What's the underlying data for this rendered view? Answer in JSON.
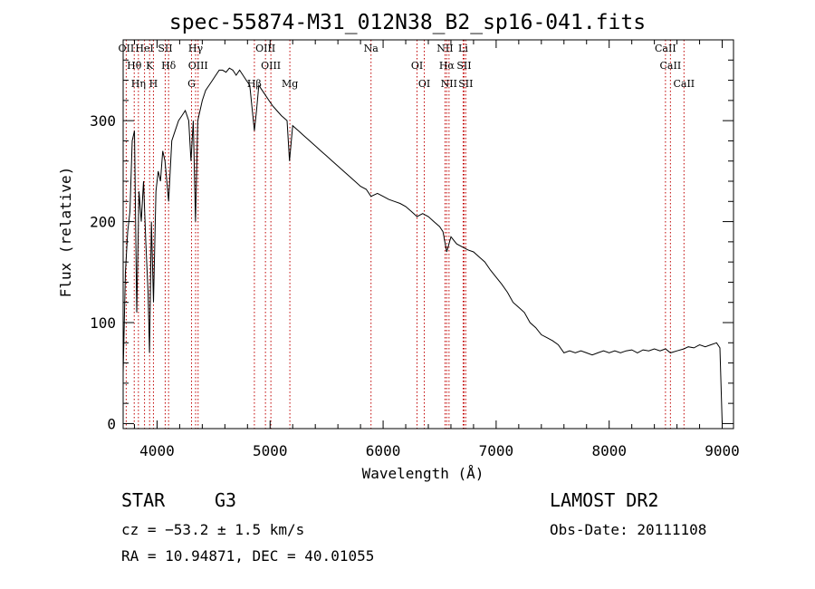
{
  "header": {
    "title": "spec-55874-M31_012N38_B2_sp16-041.fits"
  },
  "footer": {
    "object_type": "STAR",
    "subclass": "G3",
    "cz": "cz = −53.2 ± 1.5 km/s",
    "radec": "RA =  10.94871, DEC =  40.01055",
    "survey": "LAMOST DR2",
    "obs_date": "Obs-Date: 20111108"
  },
  "chart_data": {
    "type": "line",
    "title": "spec-55874-M31_012N38_B2_sp16-041.fits",
    "xlabel": "Wavelength (Å)",
    "ylabel": "Flux (relative)",
    "xlim": [
      3700,
      9100
    ],
    "ylim": [
      -5,
      380
    ],
    "xticks": [
      4000,
      5000,
      6000,
      7000,
      8000,
      9000
    ],
    "yticks": [
      0,
      100,
      200,
      300
    ],
    "grid": false,
    "series": [
      {
        "x": [
          3700,
          3720,
          3740,
          3760,
          3780,
          3800,
          3820,
          3840,
          3860,
          3880,
          3900,
          3920,
          3933,
          3950,
          3968,
          3990,
          4010,
          4030,
          4050,
          4070,
          4102,
          4130,
          4160,
          4190,
          4220,
          4250,
          4280,
          4300,
          4320,
          4340,
          4360,
          4380,
          4400,
          4430,
          4460,
          4490,
          4520,
          4550,
          4580,
          4610,
          4640,
          4670,
          4700,
          4730,
          4760,
          4790,
          4820,
          4861,
          4880,
          4900,
          4930,
          4960,
          4990,
          5020,
          5060,
          5100,
          5150,
          5172,
          5200,
          5250,
          5300,
          5350,
          5400,
          5450,
          5500,
          5550,
          5600,
          5650,
          5700,
          5750,
          5800,
          5850,
          5893,
          5950,
          6000,
          6050,
          6100,
          6150,
          6200,
          6250,
          6300,
          6350,
          6400,
          6450,
          6500,
          6530,
          6563,
          6600,
          6650,
          6700,
          6750,
          6800,
          6850,
          6900,
          6950,
          7000,
          7050,
          7100,
          7150,
          7200,
          7250,
          7300,
          7350,
          7400,
          7450,
          7500,
          7550,
          7600,
          7650,
          7700,
          7750,
          7800,
          7850,
          7900,
          7950,
          8000,
          8050,
          8100,
          8150,
          8200,
          8250,
          8300,
          8350,
          8400,
          8450,
          8498,
          8542,
          8600,
          8662,
          8700,
          8750,
          8800,
          8850,
          8900,
          8950,
          8980,
          9000
        ],
        "y": [
          50,
          150,
          190,
          210,
          280,
          290,
          110,
          230,
          200,
          240,
          180,
          130,
          70,
          200,
          120,
          230,
          250,
          240,
          270,
          260,
          220,
          280,
          290,
          300,
          305,
          310,
          300,
          260,
          300,
          200,
          300,
          310,
          320,
          330,
          335,
          340,
          345,
          350,
          350,
          348,
          352,
          350,
          345,
          350,
          345,
          340,
          335,
          290,
          310,
          335,
          330,
          325,
          320,
          315,
          310,
          305,
          300,
          260,
          295,
          290,
          285,
          280,
          275,
          270,
          265,
          260,
          255,
          250,
          245,
          240,
          235,
          232,
          225,
          228,
          225,
          222,
          220,
          218,
          215,
          210,
          205,
          208,
          205,
          200,
          195,
          190,
          170,
          185,
          178,
          175,
          172,
          170,
          165,
          160,
          152,
          145,
          138,
          130,
          120,
          115,
          110,
          100,
          95,
          88,
          85,
          82,
          78,
          70,
          72,
          70,
          72,
          70,
          68,
          70,
          72,
          70,
          72,
          70,
          72,
          73,
          70,
          73,
          72,
          74,
          72,
          74,
          70,
          72,
          74,
          76,
          75,
          78,
          76,
          78,
          80,
          75,
          0
        ]
      }
    ],
    "annotations": {
      "lines": [
        {
          "label": "OII",
          "wavelength": 3727
        },
        {
          "label": "Hθ",
          "wavelength": 3798
        },
        {
          "label": "Hη",
          "wavelength": 3835
        },
        {
          "label": "HeI",
          "wavelength": 3889
        },
        {
          "label": "K",
          "wavelength": 3934
        },
        {
          "label": "H",
          "wavelength": 3968
        },
        {
          "label": "SII",
          "wavelength": 4072
        },
        {
          "label": "Hδ",
          "wavelength": 4102
        },
        {
          "label": "G",
          "wavelength": 4305
        },
        {
          "label": "Hγ",
          "wavelength": 4341
        },
        {
          "label": "OIII",
          "wavelength": 4363
        },
        {
          "label": "Hβ",
          "wavelength": 4861
        },
        {
          "label": "OIII",
          "wavelength": 4959
        },
        {
          "label": "OIII",
          "wavelength": 5007
        },
        {
          "label": "Mg",
          "wavelength": 5175
        },
        {
          "label": "Na",
          "wavelength": 5893
        },
        {
          "label": "OI",
          "wavelength": 6300
        },
        {
          "label": "OI",
          "wavelength": 6364
        },
        {
          "label": "NII",
          "wavelength": 6548
        },
        {
          "label": "Hα",
          "wavelength": 6563
        },
        {
          "label": "NII",
          "wavelength": 6583
        },
        {
          "label": "Li",
          "wavelength": 6708
        },
        {
          "label": "SII",
          "wavelength": 6716
        },
        {
          "label": "SII",
          "wavelength": 6731
        },
        {
          "label": "CaII",
          "wavelength": 8498
        },
        {
          "label": "CaII",
          "wavelength": 8542
        },
        {
          "label": "CaII",
          "wavelength": 8662
        }
      ]
    },
    "colors": {
      "line": "#000000",
      "annotation": "#c00000"
    }
  }
}
